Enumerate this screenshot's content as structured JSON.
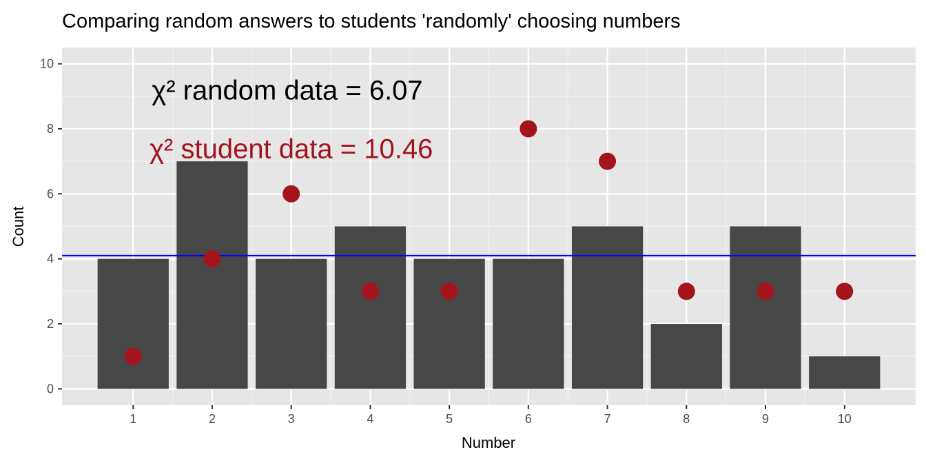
{
  "chart_data": {
    "type": "bar",
    "title": "Comparing random answers to students 'randomly' choosing numbers",
    "xlabel": "Number",
    "ylabel": "Count",
    "categories": [
      "1",
      "2",
      "3",
      "4",
      "5",
      "6",
      "7",
      "8",
      "9",
      "10"
    ],
    "series": [
      {
        "kind": "bar",
        "values": [
          4,
          7,
          4,
          5,
          4,
          4,
          5,
          2,
          5,
          1
        ],
        "color": "#474747"
      },
      {
        "kind": "point",
        "values": [
          1,
          4,
          6,
          3,
          3,
          8,
          7,
          3,
          3,
          3
        ],
        "color": "#a3141c"
      }
    ],
    "hline": {
      "y": 4.1,
      "color": "#0000ff"
    },
    "ylim": [
      -0.5,
      10.5
    ],
    "yticks": [
      0,
      2,
      4,
      6,
      8,
      10
    ],
    "grid": true,
    "panel_background": "#e6e6e6",
    "annotations": [
      {
        "text": "χ² random data = 6.07",
        "x": 2.95,
        "y": 9.2,
        "color": "#000000"
      },
      {
        "text": "χ² student data = 10.46",
        "x": 3.0,
        "y": 7.4,
        "color": "#a3141c"
      }
    ]
  }
}
